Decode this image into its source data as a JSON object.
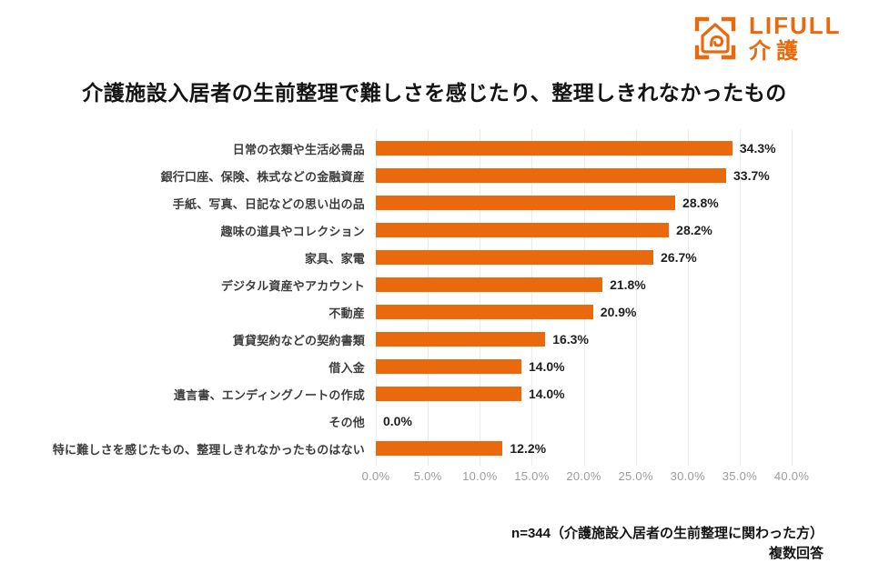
{
  "logo": {
    "brand": "LIFULL",
    "product": "介護"
  },
  "title": "介護施設入居者の生前整理で難しさを感じたり、整理しきれなかったもの",
  "chart_data": {
    "type": "bar",
    "orientation": "horizontal",
    "title": "介護施設入居者の生前整理で難しさを感じたり、整理しきれなかったもの",
    "categories": [
      "日常の衣類や生活必需品",
      "銀行口座、保険、株式などの金融資産",
      "手紙、写真、日記などの思い出の品",
      "趣味の道具やコレクション",
      "家具、家電",
      "デジタル資産やアカウント",
      "不動産",
      "賃貸契約などの契約書類",
      "借入金",
      "遺言書、エンディングノートの作成",
      "その他",
      "特に難しさを感じたもの、整理しきれなかったものはない"
    ],
    "values": [
      34.3,
      33.7,
      28.8,
      28.2,
      26.7,
      21.8,
      20.9,
      16.3,
      14.0,
      14.0,
      0.0,
      12.2
    ],
    "value_labels": [
      "34.3%",
      "33.7%",
      "28.8%",
      "28.2%",
      "26.7%",
      "21.8%",
      "20.9%",
      "16.3%",
      "14.0%",
      "14.0%",
      "0.0%",
      "12.2%"
    ],
    "xlabel": "",
    "ylabel": "",
    "xlim": [
      0,
      40
    ],
    "x_ticks": [
      0,
      5,
      10,
      15,
      20,
      25,
      30,
      35,
      40
    ],
    "x_tick_labels": [
      "0.0%",
      "5.0%",
      "10.0%",
      "15.0%",
      "20.0%",
      "25.0%",
      "30.0%",
      "35.0%",
      "40.0%"
    ],
    "grid": true,
    "legend": null
  },
  "footer": {
    "note": "n=344（介護施設入居者の生前整理に関わった方）",
    "note2": "複数回答"
  },
  "colors": {
    "accent": "#E9690C",
    "grid": "#ECECEC",
    "tick_text": "#9B9B9B",
    "category_text": "#3D3D3D",
    "value_text": "#1F1F1F",
    "title_text": "#141414"
  }
}
